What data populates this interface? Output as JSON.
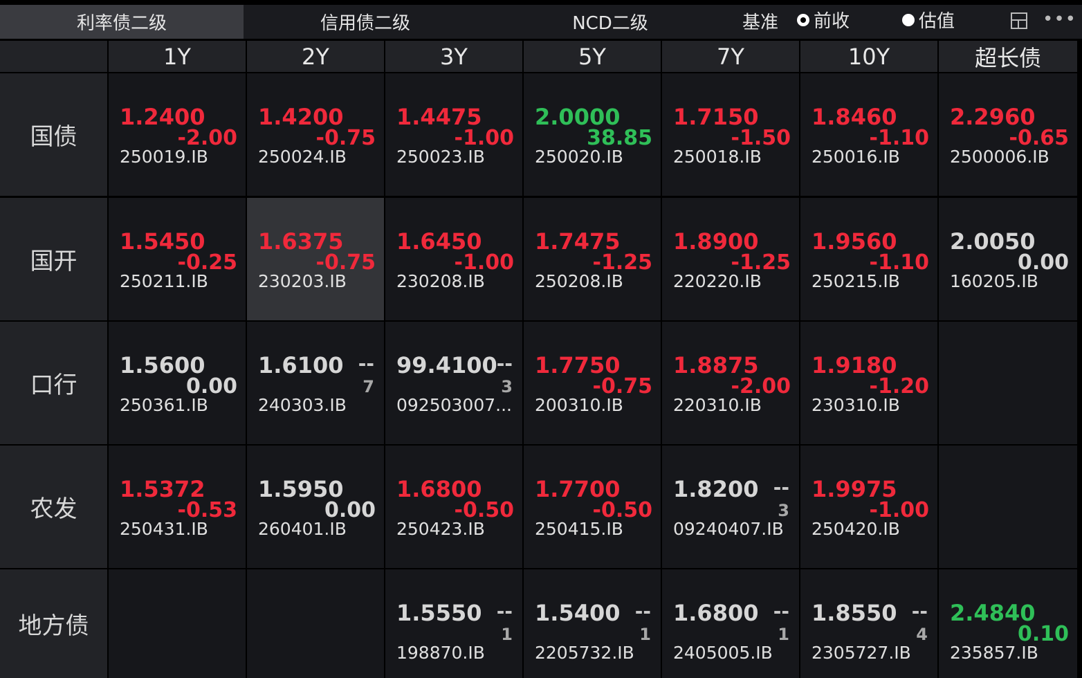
{
  "tabs": [
    {
      "label": "利率债二级",
      "active": true
    },
    {
      "label": "信用债二级",
      "active": false
    },
    {
      "label": "NCD二级",
      "active": false
    }
  ],
  "basis": {
    "label": "基准",
    "options": [
      {
        "label": "前收",
        "selected": true
      },
      {
        "label": "估值",
        "selected": false
      }
    ]
  },
  "icons": {
    "layout": "layout-icon",
    "more": "more-icon"
  },
  "colors": {
    "up": "#f0293b",
    "down": "#2fbf58",
    "neutral": "#d6d6d6"
  },
  "columns": [
    "1Y",
    "2Y",
    "3Y",
    "5Y",
    "7Y",
    "10Y",
    "超长债"
  ],
  "rows": [
    {
      "name": "国债",
      "cells": [
        {
          "yield": "1.2400",
          "change": "-2.00",
          "code": "250019.IB",
          "color": "red"
        },
        {
          "yield": "1.4200",
          "change": "-0.75",
          "code": "250024.IB",
          "color": "red"
        },
        {
          "yield": "1.4475",
          "change": "-1.00",
          "code": "250023.IB",
          "color": "red"
        },
        {
          "yield": "2.0000",
          "change": "38.85",
          "code": "250020.IB",
          "color": "green"
        },
        {
          "yield": "1.7150",
          "change": "-1.50",
          "code": "250018.IB",
          "color": "red"
        },
        {
          "yield": "1.8460",
          "change": "-1.10",
          "code": "250016.IB",
          "color": "red"
        },
        {
          "yield": "2.2960",
          "change": "-0.65",
          "code": "2500006.IB",
          "color": "red"
        }
      ]
    },
    {
      "name": "国开",
      "cells": [
        {
          "yield": "1.5450",
          "change": "-0.25",
          "code": "250211.IB",
          "color": "red"
        },
        {
          "yield": "1.6375",
          "change": "-0.75",
          "code": "230203.IB",
          "color": "red",
          "highlight": true
        },
        {
          "yield": "1.6450",
          "change": "-1.00",
          "code": "230208.IB",
          "color": "red"
        },
        {
          "yield": "1.7475",
          "change": "-1.25",
          "code": "250208.IB",
          "color": "red"
        },
        {
          "yield": "1.8900",
          "change": "-1.25",
          "code": "220220.IB",
          "color": "red"
        },
        {
          "yield": "1.9560",
          "change": "-1.10",
          "code": "250215.IB",
          "color": "red"
        },
        {
          "yield": "2.0050",
          "change": "0.00",
          "code": "160205.IB",
          "color": "white"
        }
      ]
    },
    {
      "name": "口行",
      "cells": [
        {
          "yield": "1.5600",
          "change": "0.00",
          "code": "250361.IB",
          "color": "white"
        },
        {
          "yield": "1.6100",
          "dash": "--",
          "count": "7",
          "code": "240303.IB",
          "color": "white"
        },
        {
          "yield": "99.4100",
          "dash": "--",
          "count": "3",
          "code": "092503007...",
          "color": "white"
        },
        {
          "yield": "1.7750",
          "change": "-0.75",
          "code": "200310.IB",
          "color": "red"
        },
        {
          "yield": "1.8875",
          "change": "-2.00",
          "code": "220310.IB",
          "color": "red"
        },
        {
          "yield": "1.9180",
          "change": "-1.20",
          "code": "230310.IB",
          "color": "red"
        },
        null
      ]
    },
    {
      "name": "农发",
      "cells": [
        {
          "yield": "1.5372",
          "change": "-0.53",
          "code": "250431.IB",
          "color": "red"
        },
        {
          "yield": "1.5950",
          "change": "0.00",
          "code": "260401.IB",
          "color": "white"
        },
        {
          "yield": "1.6800",
          "change": "-0.50",
          "code": "250423.IB",
          "color": "red"
        },
        {
          "yield": "1.7700",
          "change": "-0.50",
          "code": "250415.IB",
          "color": "red"
        },
        {
          "yield": "1.8200",
          "dash": "--",
          "count": "3",
          "code": "09240407.IB",
          "color": "white"
        },
        {
          "yield": "1.9975",
          "change": "-1.00",
          "code": "250420.IB",
          "color": "red"
        },
        null
      ]
    },
    {
      "name": "地方债",
      "cells": [
        null,
        null,
        {
          "yield": "1.5550",
          "dash": "--",
          "count": "1",
          "code": "198870.IB",
          "color": "white"
        },
        {
          "yield": "1.5400",
          "dash": "--",
          "count": "1",
          "code": "2205732.IB",
          "color": "white"
        },
        {
          "yield": "1.6800",
          "dash": "--",
          "count": "1",
          "code": "2405005.IB",
          "color": "white"
        },
        {
          "yield": "1.8550",
          "dash": "--",
          "count": "4",
          "code": "2305727.IB",
          "color": "white"
        },
        {
          "yield": "2.4840",
          "change": "0.10",
          "code": "235857.IB",
          "color": "green"
        }
      ]
    }
  ]
}
